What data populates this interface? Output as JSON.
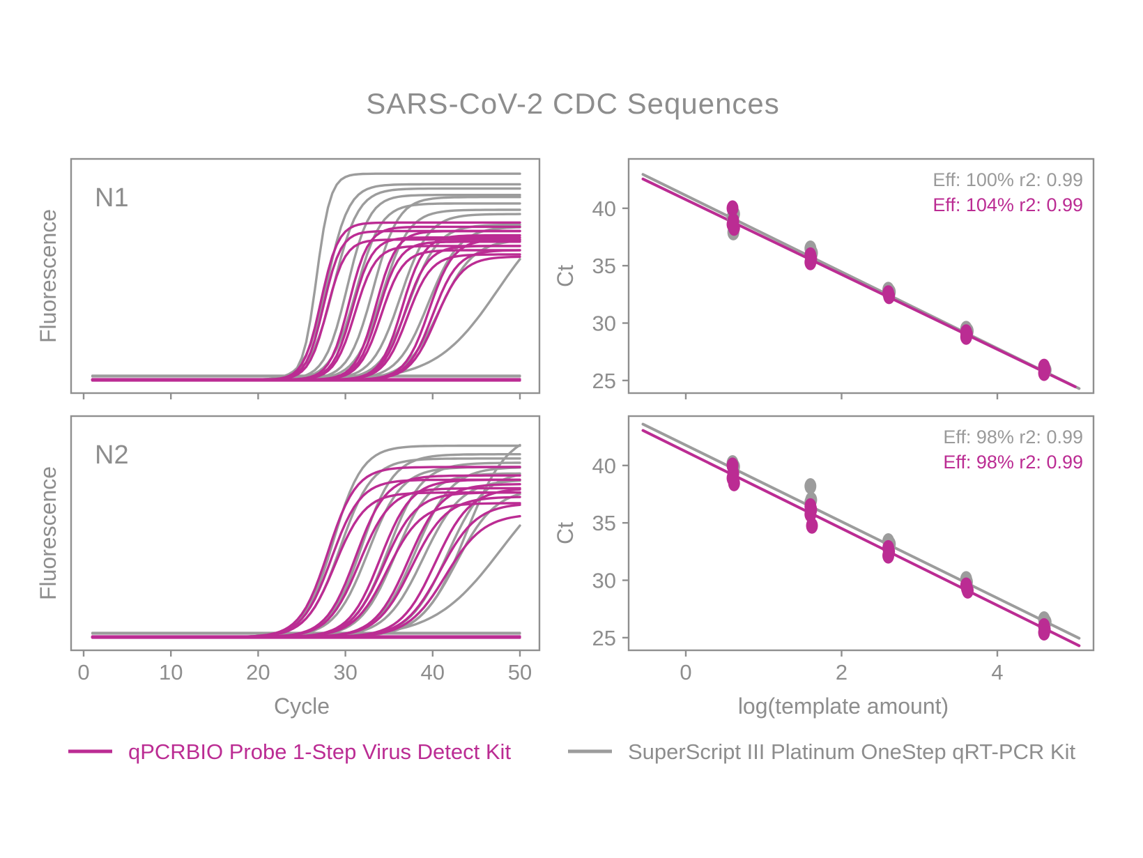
{
  "title": "SARS-CoV-2 CDC Sequences",
  "colors": {
    "magenta": "#BB2C93",
    "gray": "#9C9C9C",
    "text_gray": "#8D8D8D",
    "ann_gray": "#9A9A9A",
    "border_gray": "#8F8F8F"
  },
  "legend": {
    "items": [
      {
        "series": "magenta",
        "label": "qPCRBIO Probe 1-Step Virus Detect Kit"
      },
      {
        "series": "gray",
        "label": "SuperScript III Platinum OneStep qRT-PCR Kit"
      }
    ]
  },
  "chart_data": [
    {
      "type": "line",
      "title": "N1 amplification",
      "xlabel": "Cycle",
      "ylabel": "Fluorescence",
      "x_ticks": [
        0,
        10,
        20,
        30,
        40,
        50
      ],
      "x_range": [
        0,
        51
      ],
      "grid": false,
      "note": "sigmoid amplification curves; each curve = [midpoint_cycle, slope_k, plateau_fraction]",
      "curves": {
        "gray": [
          [
            26.7,
            1.25,
            0.97
          ],
          [
            27.9,
            0.8,
            0.92
          ],
          [
            28.7,
            0.72,
            0.9
          ],
          [
            30.2,
            0.78,
            0.87
          ],
          [
            31.2,
            0.7,
            0.83
          ],
          [
            33.2,
            0.7,
            0.86
          ],
          [
            34.2,
            0.65,
            0.8
          ],
          [
            36.3,
            0.62,
            0.78
          ],
          [
            37.3,
            0.6,
            0.73
          ],
          [
            39.5,
            0.56,
            0.72
          ],
          [
            40.8,
            0.52,
            0.66
          ],
          [
            47.5,
            0.28,
            0.85
          ]
        ],
        "magenta": [
          [
            27.2,
            1.0,
            0.74
          ],
          [
            27.5,
            1.0,
            0.7
          ],
          [
            27.9,
            0.95,
            0.66
          ],
          [
            30.4,
            0.9,
            0.72
          ],
          [
            30.8,
            0.88,
            0.67
          ],
          [
            31.1,
            0.85,
            0.63
          ],
          [
            33.5,
            0.85,
            0.7
          ],
          [
            33.8,
            0.83,
            0.65
          ],
          [
            34.1,
            0.8,
            0.61
          ],
          [
            36.5,
            0.8,
            0.68
          ],
          [
            36.8,
            0.76,
            0.63
          ],
          [
            37.1,
            0.74,
            0.59
          ],
          [
            39.6,
            0.72,
            0.66
          ],
          [
            40.0,
            0.7,
            0.61
          ],
          [
            40.4,
            0.66,
            0.58
          ]
        ]
      },
      "flat_baselines": {
        "gray": [
          -6,
          -5
        ],
        "magenta": [
          -1,
          0,
          1
        ]
      }
    },
    {
      "type": "line",
      "title": "N2 amplification",
      "xlabel": "Cycle",
      "ylabel": "Fluorescence",
      "x_ticks": [
        0,
        10,
        20,
        30,
        40,
        50
      ],
      "x_range": [
        0,
        51
      ],
      "grid": false,
      "curves": {
        "gray": [
          [
            28.6,
            0.6,
            0.9
          ],
          [
            29.4,
            0.55,
            0.84
          ],
          [
            31.9,
            0.55,
            0.86
          ],
          [
            32.6,
            0.52,
            0.8
          ],
          [
            34.9,
            0.52,
            0.82
          ],
          [
            35.7,
            0.5,
            0.77
          ],
          [
            38.0,
            0.48,
            0.8
          ],
          [
            38.9,
            0.46,
            0.74
          ],
          [
            41.7,
            0.46,
            0.78
          ],
          [
            42.7,
            0.44,
            0.7
          ],
          [
            43.8,
            0.42,
            0.97
          ],
          [
            47.8,
            0.26,
            0.82
          ]
        ],
        "magenta": [
          [
            28.0,
            0.62,
            0.8
          ],
          [
            28.4,
            0.6,
            0.74
          ],
          [
            28.8,
            0.58,
            0.68
          ],
          [
            31.2,
            0.58,
            0.76
          ],
          [
            31.6,
            0.56,
            0.7
          ],
          [
            34.0,
            0.56,
            0.74
          ],
          [
            34.4,
            0.54,
            0.68
          ],
          [
            34.8,
            0.52,
            0.63
          ],
          [
            37.2,
            0.52,
            0.72
          ],
          [
            37.6,
            0.5,
            0.66
          ],
          [
            40.3,
            0.5,
            0.7
          ],
          [
            40.9,
            0.48,
            0.63
          ],
          [
            41.5,
            0.46,
            0.58
          ]
        ]
      },
      "flat_baselines": {
        "gray": [
          -6,
          -5
        ],
        "magenta": [
          -1,
          0,
          1
        ]
      }
    },
    {
      "type": "scatter",
      "title": "N1 standard curve",
      "xlabel": "log(template amount)",
      "ylabel": "Ct",
      "x_ticks": [
        0,
        2,
        4
      ],
      "y_ticks": [
        25,
        30,
        35,
        40
      ],
      "x_range": [
        -0.73,
        5.23
      ],
      "y_range": [
        23.9,
        44.3
      ],
      "grid": false,
      "annotations": [
        {
          "series": "gray",
          "text": "Eff: 100% r2: 0.99"
        },
        {
          "series": "magenta",
          "text": "Eff: 104% r2: 0.99"
        }
      ],
      "fit_lines": [
        {
          "series": "gray",
          "x1": -0.55,
          "y1": 42.95,
          "x2": 5.05,
          "y2": 24.3
        },
        {
          "series": "magenta",
          "x1": -0.55,
          "y1": 42.55,
          "x2": 5.0,
          "y2": 24.45
        }
      ],
      "points": {
        "gray": [
          [
            0.62,
            39.5
          ],
          [
            0.6,
            39.2
          ],
          [
            0.61,
            37.9
          ],
          [
            1.6,
            36.5
          ],
          [
            1.62,
            36.1
          ],
          [
            2.6,
            32.9
          ],
          [
            2.62,
            32.7
          ],
          [
            3.6,
            29.5
          ],
          [
            3.62,
            29.3
          ],
          [
            4.6,
            26.1
          ],
          [
            4.62,
            25.9
          ]
        ],
        "magenta": [
          [
            0.6,
            40.0
          ],
          [
            0.61,
            38.9
          ],
          [
            0.6,
            38.6
          ],
          [
            0.62,
            38.3
          ],
          [
            1.6,
            35.9
          ],
          [
            1.61,
            35.6
          ],
          [
            1.6,
            35.3
          ],
          [
            2.6,
            32.6
          ],
          [
            2.61,
            32.35
          ],
          [
            3.6,
            29.2
          ],
          [
            3.61,
            29.0
          ],
          [
            3.6,
            28.8
          ],
          [
            4.6,
            26.2
          ],
          [
            4.61,
            25.9
          ],
          [
            4.6,
            25.65
          ]
        ]
      }
    },
    {
      "type": "scatter",
      "title": "N2 standard curve",
      "xlabel": "log(template amount)",
      "ylabel": "Ct",
      "x_ticks": [
        0,
        2,
        4
      ],
      "y_ticks": [
        25,
        30,
        35,
        40
      ],
      "x_range": [
        -0.73,
        5.23
      ],
      "y_range": [
        23.9,
        44.3
      ],
      "grid": false,
      "annotations": [
        {
          "series": "gray",
          "text": "Eff: 98% r2: 0.99"
        },
        {
          "series": "magenta",
          "text": "Eff: 98% r2: 0.99"
        }
      ],
      "fit_lines": [
        {
          "series": "gray",
          "x1": -0.55,
          "y1": 43.6,
          "x2": 5.05,
          "y2": 24.95
        },
        {
          "series": "magenta",
          "x1": -0.55,
          "y1": 43.05,
          "x2": 5.05,
          "y2": 24.3
        }
      ],
      "points": {
        "gray": [
          [
            0.6,
            40.2
          ],
          [
            0.62,
            39.9
          ],
          [
            1.6,
            38.2
          ],
          [
            1.61,
            37.0
          ],
          [
            1.6,
            36.8
          ],
          [
            2.6,
            33.4
          ],
          [
            2.62,
            33.15
          ],
          [
            3.6,
            30.1
          ],
          [
            3.61,
            29.85
          ],
          [
            4.6,
            26.6
          ],
          [
            4.62,
            26.35
          ]
        ],
        "magenta": [
          [
            0.6,
            40.0
          ],
          [
            0.61,
            39.3
          ],
          [
            0.6,
            38.9
          ],
          [
            0.62,
            38.45
          ],
          [
            1.6,
            36.45
          ],
          [
            1.61,
            36.15
          ],
          [
            1.6,
            35.75
          ],
          [
            1.62,
            34.75
          ],
          [
            2.6,
            32.8
          ],
          [
            2.61,
            32.5
          ],
          [
            2.6,
            32.15
          ],
          [
            3.6,
            29.55
          ],
          [
            3.61,
            29.3
          ],
          [
            3.62,
            29.1
          ],
          [
            4.6,
            26.0
          ],
          [
            4.61,
            25.7
          ],
          [
            4.6,
            25.45
          ]
        ]
      }
    }
  ],
  "amp": {
    "xlabel": "Cycle",
    "ylabel": "Fluorescence",
    "panels": [
      {
        "label": "N1"
      },
      {
        "label": "N2"
      }
    ]
  },
  "std": {
    "xlabel": "log(template amount)",
    "ylabel": "Ct"
  }
}
